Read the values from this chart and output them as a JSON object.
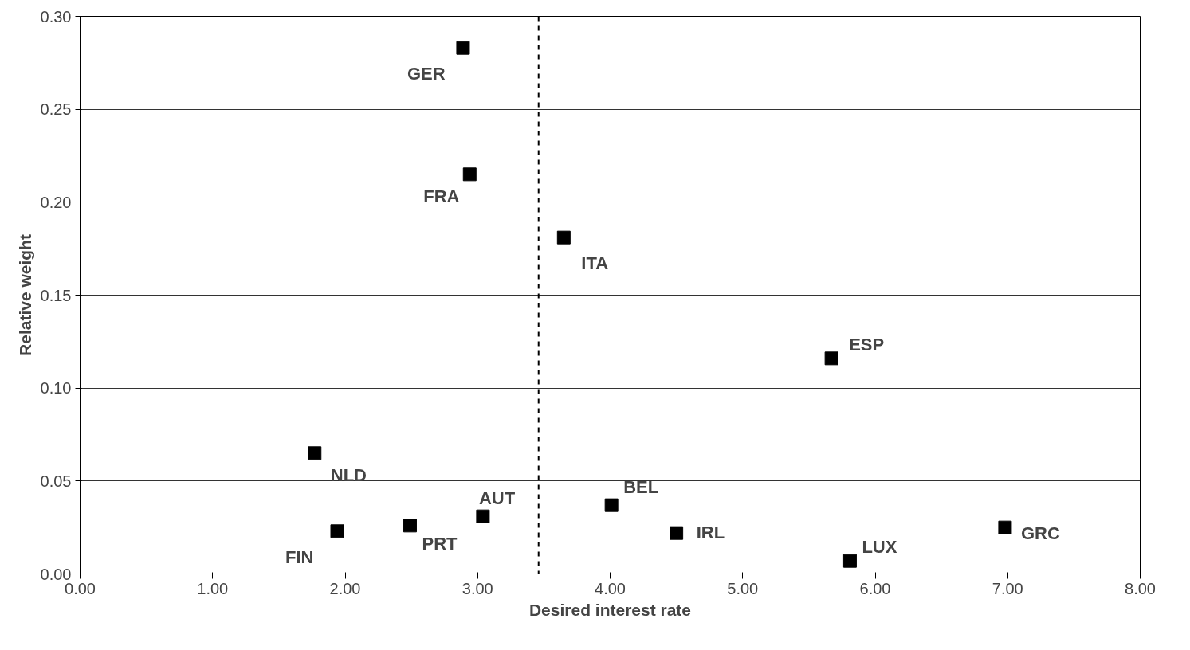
{
  "chart_data": {
    "type": "scatter",
    "xlabel": "Desired interest rate",
    "ylabel": "Relative weight",
    "x": [
      2.89,
      2.94,
      3.65,
      5.67,
      1.77,
      4.01,
      3.04,
      2.49,
      1.94,
      4.5,
      6.98,
      5.81
    ],
    "series": [
      {
        "color": "#000000",
        "values": [
          0.283,
          0.215,
          0.181,
          0.116,
          0.065,
          0.037,
          0.031,
          0.026,
          0.023,
          0.022,
          0.025,
          0.007
        ]
      }
    ],
    "annotations": [
      {
        "text": "GER",
        "x": 2.89,
        "y": 0.283
      },
      {
        "text": "FRA",
        "x": 2.94,
        "y": 0.215
      },
      {
        "text": "ITA",
        "x": 3.65,
        "y": 0.181
      },
      {
        "text": "ESP",
        "x": 5.67,
        "y": 0.116
      },
      {
        "text": "NLD",
        "x": 1.77,
        "y": 0.065
      },
      {
        "text": "BEL",
        "x": 4.01,
        "y": 0.037
      },
      {
        "text": "AUT",
        "x": 3.04,
        "y": 0.031
      },
      {
        "text": "PRT",
        "x": 2.49,
        "y": 0.026
      },
      {
        "text": "FIN",
        "x": 1.94,
        "y": 0.023
      },
      {
        "text": "IRL",
        "x": 4.5,
        "y": 0.022
      },
      {
        "text": "GRC",
        "x": 6.98,
        "y": 0.025
      },
      {
        "text": "LUX",
        "x": 5.81,
        "y": 0.007
      }
    ],
    "ref_lines": [
      {
        "axis": "x",
        "value": 3.46,
        "line_style": "dashed",
        "color": "#000000"
      }
    ],
    "xlim": [
      0,
      8
    ],
    "ylim": [
      0,
      0.3
    ],
    "xticks": [
      {
        "value": 0,
        "label": "0.00"
      },
      {
        "value": 1,
        "label": "1.00"
      },
      {
        "value": 2,
        "label": "2.00"
      },
      {
        "value": 3,
        "label": "3.00"
      },
      {
        "value": 4,
        "label": "4.00"
      },
      {
        "value": 5,
        "label": "5.00"
      },
      {
        "value": 6,
        "label": "6.00"
      },
      {
        "value": 7,
        "label": "7.00"
      },
      {
        "value": 8,
        "label": "8.00"
      }
    ],
    "yticks": [
      {
        "value": 0,
        "label": "0.00"
      },
      {
        "value": 0.05,
        "label": "0.05"
      },
      {
        "value": 0.1,
        "label": "0.10"
      },
      {
        "value": 0.15,
        "label": "0.15"
      },
      {
        "value": 0.2,
        "label": "0.20"
      },
      {
        "value": 0.25,
        "label": "0.25"
      },
      {
        "value": 0.3,
        "label": "0.30"
      }
    ],
    "grid": "y",
    "marker": "square"
  }
}
